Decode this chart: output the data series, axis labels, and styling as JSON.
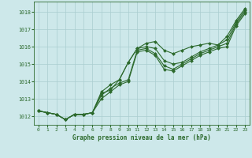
{
  "xlabel": "Graphe pression niveau de la mer (hPa)",
  "ylim": [
    1011.5,
    1018.6
  ],
  "xlim": [
    -0.5,
    23.5
  ],
  "yticks": [
    1012,
    1013,
    1014,
    1015,
    1016,
    1017,
    1018
  ],
  "xticks": [
    0,
    1,
    2,
    3,
    4,
    5,
    6,
    7,
    8,
    9,
    10,
    11,
    12,
    13,
    14,
    15,
    16,
    17,
    18,
    19,
    20,
    21,
    22,
    23
  ],
  "bg_color": "#cde8ea",
  "grid_color": "#aacdd0",
  "line_color": "#2d6a2d",
  "series": [
    [
      1012.3,
      1012.2,
      1012.1,
      1011.8,
      1012.1,
      1012.1,
      1012.2,
      1013.4,
      1013.8,
      1014.1,
      1015.1,
      1015.9,
      1016.2,
      1016.3,
      1015.8,
      1015.6,
      1015.8,
      1016.0,
      1016.1,
      1016.2,
      1016.1,
      1016.6,
      1017.5,
      1018.2
    ],
    [
      1012.3,
      1012.2,
      1012.1,
      1011.8,
      1012.1,
      1012.1,
      1012.2,
      1013.2,
      1013.6,
      1013.9,
      1014.1,
      1015.8,
      1015.9,
      1015.6,
      1014.9,
      1014.7,
      1015.0,
      1015.3,
      1015.6,
      1015.8,
      1016.0,
      1016.2,
      1017.3,
      1018.0
    ],
    [
      1012.3,
      1012.2,
      1012.1,
      1011.8,
      1012.1,
      1012.1,
      1012.2,
      1013.0,
      1013.4,
      1013.8,
      1014.0,
      1015.7,
      1015.8,
      1015.5,
      1014.7,
      1014.6,
      1014.9,
      1015.2,
      1015.5,
      1015.7,
      1015.9,
      1016.0,
      1017.2,
      1017.9
    ],
    [
      1012.3,
      1012.2,
      1012.1,
      1011.8,
      1012.1,
      1012.1,
      1012.2,
      1013.3,
      1013.5,
      1014.1,
      1015.1,
      1015.9,
      1016.0,
      1015.9,
      1015.2,
      1015.0,
      1015.1,
      1015.4,
      1015.7,
      1015.9,
      1016.1,
      1016.4,
      1017.4,
      1018.1
    ]
  ],
  "marker": "D",
  "markersize": 2.0,
  "linewidth": 0.8
}
